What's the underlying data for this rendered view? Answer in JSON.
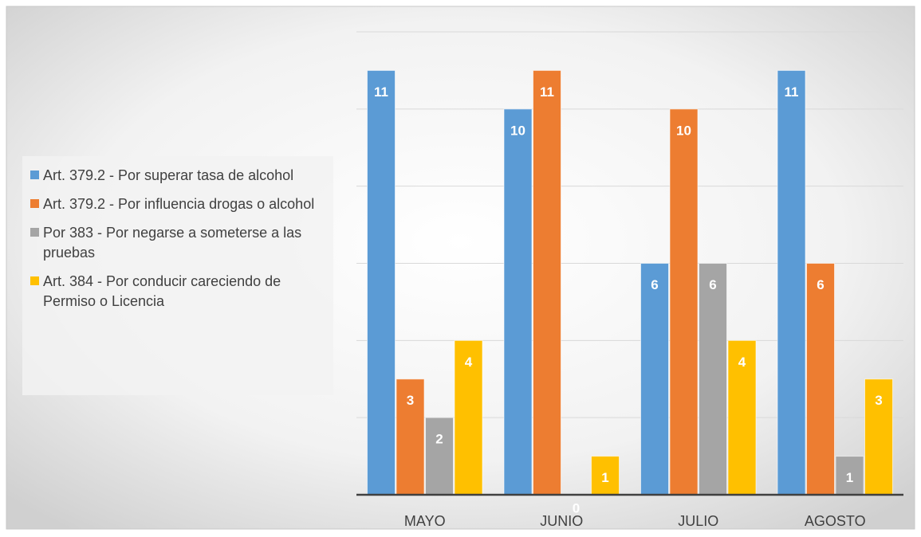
{
  "chart_data": {
    "type": "bar",
    "categories": [
      "MAYO",
      "JUNIO",
      "JULIO",
      "AGOSTO"
    ],
    "series": [
      {
        "name": "Art. 379.2 - Por superar tasa de alcohol",
        "color": "#5b9bd5",
        "values": [
          11,
          10,
          6,
          11
        ]
      },
      {
        "name": "Art. 379.2 - Por influencia drogas o alcohol",
        "color": "#ed7d31",
        "values": [
          3,
          11,
          10,
          6
        ]
      },
      {
        "name": "Por 383 - Por negarse a someterse a las pruebas",
        "color": "#a5a5a5",
        "values": [
          2,
          0,
          6,
          1
        ]
      },
      {
        "name": "Art. 384 - Por conducir careciendo de Permiso o Licencia",
        "color": "#ffc000",
        "values": [
          4,
          1,
          4,
          3
        ]
      }
    ],
    "ylim": [
      0,
      12
    ],
    "yticks": [
      0,
      2,
      4,
      6,
      8,
      10,
      12
    ],
    "grid": true,
    "legend": "left"
  }
}
